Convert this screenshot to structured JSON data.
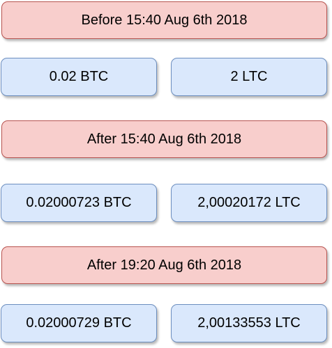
{
  "groups": [
    {
      "header": "Before 15:40 Aug 6th 2018",
      "btc": "0.02 BTC",
      "ltc": "2 LTC"
    },
    {
      "header": "After 15:40 Aug 6th 2018",
      "btc": "0.02000723 BTC",
      "ltc": "2,00020172 LTC"
    },
    {
      "header": "After 19:20 Aug 6th 2018",
      "btc": "0.02000729 BTC",
      "ltc": "2,00133553 LTC"
    }
  ],
  "colors": {
    "header_fill": "#f8cecc",
    "header_stroke": "#b85450",
    "value_fill": "#dae8fc",
    "value_stroke": "#6c8ebf"
  }
}
